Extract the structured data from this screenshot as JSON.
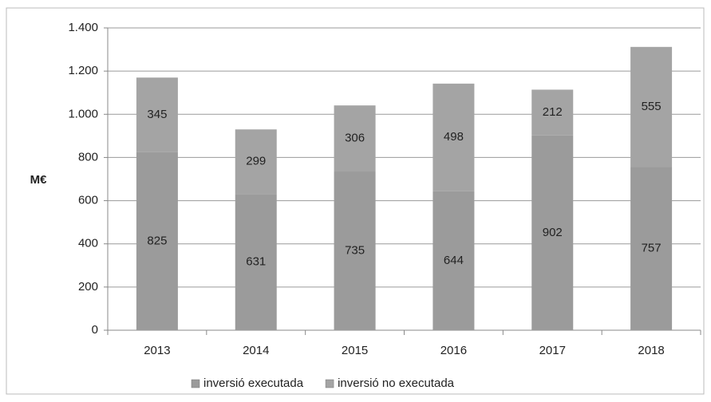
{
  "chart_data": {
    "type": "stacked_bar",
    "y_label": "M€",
    "categories": [
      "2013",
      "2014",
      "2015",
      "2016",
      "2017",
      "2018"
    ],
    "series": [
      {
        "name": "inversió executada",
        "color": "#9b9b9b",
        "values": [
          825,
          631,
          735,
          644,
          902,
          757
        ]
      },
      {
        "name": "inversió no executada",
        "color": "#a4a4a4",
        "values": [
          345,
          299,
          306,
          498,
          212,
          555
        ]
      }
    ],
    "ylim": [
      0,
      1400
    ],
    "yticks": [
      0,
      200,
      400,
      600,
      800,
      {
        "value": 1000,
        "label": "1.000"
      },
      {
        "value": 1200,
        "label": "1.200"
      },
      {
        "value": 1400,
        "label": "1.400"
      }
    ],
    "grid": true,
    "legend": "bottom"
  }
}
